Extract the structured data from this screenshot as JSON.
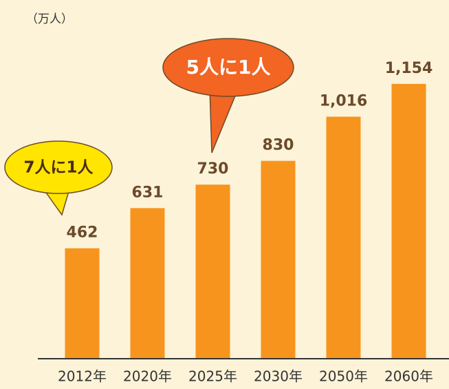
{
  "chart_data": {
    "type": "bar",
    "y_label": "（万人）",
    "categories": [
      "2012年",
      "2020年",
      "2025年",
      "2030年",
      "2050年",
      "2060年"
    ],
    "values": [
      462,
      631,
      730,
      830,
      1016,
      1154
    ],
    "value_labels": [
      "462",
      "631",
      "730",
      "830",
      "1,016",
      "1,154"
    ],
    "color": "#f7941d",
    "ylim": [
      0,
      1200
    ],
    "annotations": [
      {
        "text": "7人に1人"
      },
      {
        "text": "5人に1人"
      }
    ]
  }
}
